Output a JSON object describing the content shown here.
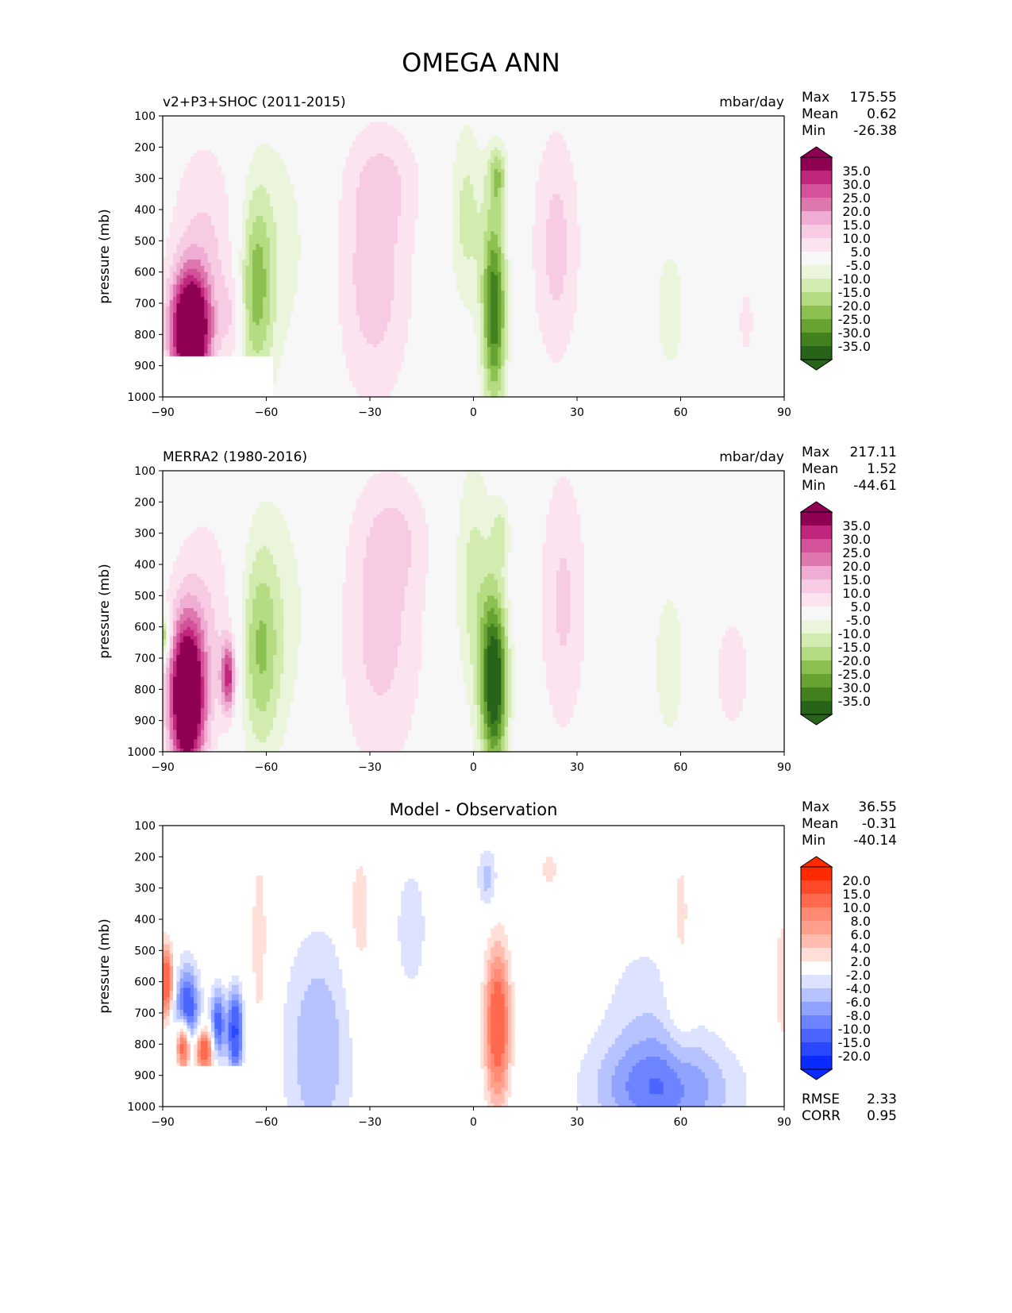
{
  "figure_title": "OMEGA ANN",
  "chart_data": [
    {
      "type": "heatmap",
      "subtype": "filled-contour",
      "title_left": "v2+P3+SHOC (2011-2015)",
      "title_right": "mbar/day",
      "title_center": "",
      "xlabel": "",
      "ylabel": "pressure (mb)",
      "xlim": [
        -90,
        90
      ],
      "ylim": [
        1000,
        100
      ],
      "xticks": [
        -90,
        -60,
        -30,
        0,
        30,
        60,
        90
      ],
      "xtick_labels": [
        "−90",
        "−60",
        "−30",
        "0",
        "30",
        "60",
        "90"
      ],
      "yticks": [
        100,
        200,
        300,
        400,
        500,
        600,
        700,
        800,
        900,
        1000
      ],
      "ytick_labels": [
        "100",
        "200",
        "300",
        "400",
        "500",
        "600",
        "700",
        "800",
        "900",
        "1000"
      ],
      "stats": [
        {
          "label": "Max",
          "value": "175.55"
        },
        {
          "label": "Mean",
          "value": "0.62"
        },
        {
          "label": "Min",
          "value": "-26.38"
        }
      ],
      "colorbar": {
        "levels": [
          35,
          30,
          25,
          20,
          15,
          10,
          5,
          -5,
          -10,
          -15,
          -20,
          -25,
          -30,
          -35
        ],
        "labels": [
          "35.0",
          "30.0",
          "25.0",
          "20.0",
          "15.0",
          "10.0",
          "5.0",
          "-5.0",
          "-10.0",
          "-15.0",
          "-20.0",
          "-25.0",
          "-30.0",
          "-35.0"
        ],
        "colors": [
          "#8e0152",
          "#c0267e",
          "#d3529a",
          "#de77ae",
          "#efadd3",
          "#f7cbe4",
          "#fbe3f0",
          "#f7f7f7",
          "#eaf5dc",
          "#d2ecb0",
          "#b5dc82",
          "#8cc051",
          "#68a232",
          "#43811f",
          "#276419"
        ]
      },
      "missing_region": {
        "lat_max": -58,
        "p_min": 870
      },
      "features": [
        {
          "lat": -82,
          "p": 790,
          "dlat": 4,
          "dp": 130,
          "amp": 55
        },
        {
          "lat": -77,
          "p": 520,
          "dlat": 8,
          "dp": 260,
          "amp": 11
        },
        {
          "lat": -70,
          "p": 750,
          "dlat": 2,
          "dp": 120,
          "amp": 8
        },
        {
          "lat": -63,
          "p": 650,
          "dlat": 3.5,
          "dp": 220,
          "amp": -20
        },
        {
          "lat": -57,
          "p": 520,
          "dlat": 9,
          "dp": 330,
          "amp": -7
        },
        {
          "lat": -29,
          "p": 620,
          "dlat": 8,
          "dp": 300,
          "amp": 13
        },
        {
          "lat": -25,
          "p": 300,
          "dlat": 8,
          "dp": 120,
          "amp": 6
        },
        {
          "lat": 6,
          "p": 720,
          "dlat": 2.5,
          "dp": 230,
          "amp": -34
        },
        {
          "lat": -2,
          "p": 420,
          "dlat": 3.5,
          "dp": 220,
          "amp": -12
        },
        {
          "lat": 7,
          "p": 290,
          "dlat": 2,
          "dp": 70,
          "amp": -16
        },
        {
          "lat": 24,
          "p": 520,
          "dlat": 5,
          "dp": 280,
          "amp": 12
        },
        {
          "lat": 57,
          "p": 720,
          "dlat": 4,
          "dp": 200,
          "amp": -7
        },
        {
          "lat": 79,
          "p": 760,
          "dlat": 1.5,
          "dp": 80,
          "amp": 9
        }
      ]
    },
    {
      "type": "heatmap",
      "subtype": "filled-contour",
      "title_left": "MERRA2 (1980-2016)",
      "title_right": "mbar/day",
      "title_center": "",
      "xlabel": "",
      "ylabel": "pressure (mb)",
      "xlim": [
        -90,
        90
      ],
      "ylim": [
        1000,
        100
      ],
      "xticks": [
        -90,
        -60,
        -30,
        0,
        30,
        60,
        90
      ],
      "xtick_labels": [
        "−90",
        "−60",
        "−30",
        "0",
        "30",
        "60",
        "90"
      ],
      "yticks": [
        100,
        200,
        300,
        400,
        500,
        600,
        700,
        800,
        900,
        1000
      ],
      "ytick_labels": [
        "100",
        "200",
        "300",
        "400",
        "500",
        "600",
        "700",
        "800",
        "900",
        "1000"
      ],
      "stats": [
        {
          "label": "Max",
          "value": "217.11"
        },
        {
          "label": "Mean",
          "value": "1.52"
        },
        {
          "label": "Min",
          "value": "-44.61"
        }
      ],
      "colorbar": {
        "levels": [
          35,
          30,
          25,
          20,
          15,
          10,
          5,
          -5,
          -10,
          -15,
          -20,
          -25,
          -30,
          -35
        ],
        "labels": [
          "35.0",
          "30.0",
          "25.0",
          "20.0",
          "15.0",
          "10.0",
          "5.0",
          "-5.0",
          "-10.0",
          "-15.0",
          "-20.0",
          "-25.0",
          "-30.0",
          "-35.0"
        ],
        "colors": [
          "#8e0152",
          "#c0267e",
          "#d3529a",
          "#de77ae",
          "#efadd3",
          "#f7cbe4",
          "#fbe3f0",
          "#f7f7f7",
          "#eaf5dc",
          "#d2ecb0",
          "#b5dc82",
          "#8cc051",
          "#68a232",
          "#43811f",
          "#276419"
        ]
      },
      "missing_region": null,
      "features": [
        {
          "lat": -83,
          "p": 830,
          "dlat": 3.5,
          "dp": 170,
          "amp": 55
        },
        {
          "lat": -77,
          "p": 600,
          "dlat": 8,
          "dp": 280,
          "amp": 10
        },
        {
          "lat": -71,
          "p": 760,
          "dlat": 1.5,
          "dp": 80,
          "amp": 30
        },
        {
          "lat": -90,
          "p": 630,
          "dlat": 1.5,
          "dp": 50,
          "amp": -25
        },
        {
          "lat": -62,
          "p": 680,
          "dlat": 4,
          "dp": 230,
          "amp": -17
        },
        {
          "lat": -57,
          "p": 560,
          "dlat": 9,
          "dp": 340,
          "amp": -7
        },
        {
          "lat": -27,
          "p": 620,
          "dlat": 9,
          "dp": 330,
          "amp": 12
        },
        {
          "lat": -22,
          "p": 300,
          "dlat": 7,
          "dp": 130,
          "amp": 6
        },
        {
          "lat": 6,
          "p": 780,
          "dlat": 2.8,
          "dp": 200,
          "amp": -42
        },
        {
          "lat": 0,
          "p": 450,
          "dlat": 4,
          "dp": 280,
          "amp": -12
        },
        {
          "lat": 8,
          "p": 300,
          "dlat": 2,
          "dp": 80,
          "amp": -10
        },
        {
          "lat": 26,
          "p": 520,
          "dlat": 5,
          "dp": 320,
          "amp": 11
        },
        {
          "lat": 57,
          "p": 720,
          "dlat": 4,
          "dp": 220,
          "amp": -8
        },
        {
          "lat": 75,
          "p": 750,
          "dlat": 7,
          "dp": 250,
          "amp": 6
        }
      ]
    },
    {
      "type": "heatmap",
      "subtype": "filled-contour",
      "title_left": "",
      "title_right": "",
      "title_center": "Model - Observation",
      "xlabel": "",
      "ylabel": "pressure (mb)",
      "xlim": [
        -90,
        90
      ],
      "ylim": [
        1000,
        100
      ],
      "xticks": [
        -90,
        -60,
        -30,
        0,
        30,
        60,
        90
      ],
      "xtick_labels": [
        "−90",
        "−60",
        "−30",
        "0",
        "30",
        "60",
        "90"
      ],
      "yticks": [
        100,
        200,
        300,
        400,
        500,
        600,
        700,
        800,
        900,
        1000
      ],
      "ytick_labels": [
        "100",
        "200",
        "300",
        "400",
        "500",
        "600",
        "700",
        "800",
        "900",
        "1000"
      ],
      "stats": [
        {
          "label": "Max",
          "value": "36.55"
        },
        {
          "label": "Mean",
          "value": "-0.31"
        },
        {
          "label": "Min",
          "value": "-40.14"
        }
      ],
      "extra_stats": [
        {
          "label": "RMSE",
          "value": "2.33"
        },
        {
          "label": "CORR",
          "value": "0.95"
        }
      ],
      "colorbar": {
        "levels": [
          20,
          15,
          10,
          8,
          6,
          4,
          2,
          -2,
          -4,
          -6,
          -8,
          -10,
          -15,
          -20
        ],
        "labels": [
          "20.0",
          "15.0",
          "10.0",
          "8.0",
          "6.0",
          "4.0",
          "2.0",
          "-2.0",
          "-4.0",
          "-6.0",
          "-8.0",
          "-10.0",
          "-15.0",
          "-20.0"
        ],
        "colors": [
          "#ff2a00",
          "#ff4a2a",
          "#ff6a4f",
          "#ff8a74",
          "#ff9e8a",
          "#ffbcaf",
          "#ffdfd8",
          "#ffffff",
          "#dce2ff",
          "#b6c3ff",
          "#8fa3ff",
          "#6c84ff",
          "#4b66ff",
          "#2a48ff",
          "#0a2aff"
        ]
      },
      "missing_region": {
        "lat_max": -58,
        "p_min": 870
      },
      "features": [
        {
          "lat": 7,
          "p": 740,
          "dlat": 2.5,
          "dp": 170,
          "amp": 14
        },
        {
          "lat": -89,
          "p": 600,
          "dlat": 1.5,
          "dp": 80,
          "amp": 14
        },
        {
          "lat": -84,
          "p": 800,
          "dlat": 1.5,
          "dp": 60,
          "amp": 18
        },
        {
          "lat": -78,
          "p": 820,
          "dlat": 2,
          "dp": 50,
          "amp": 14
        },
        {
          "lat": -83,
          "p": 700,
          "dlat": 2.5,
          "dp": 100,
          "amp": -14
        },
        {
          "lat": -74,
          "p": 740,
          "dlat": 1.5,
          "dp": 80,
          "amp": -12
        },
        {
          "lat": -69,
          "p": 760,
          "dlat": 1.5,
          "dp": 90,
          "amp": -16
        },
        {
          "lat": -62,
          "p": 480,
          "dlat": 2,
          "dp": 260,
          "amp": 3
        },
        {
          "lat": -45,
          "p": 820,
          "dlat": 7,
          "dp": 260,
          "amp": -6
        },
        {
          "lat": -33,
          "p": 400,
          "dlat": 3,
          "dp": 200,
          "amp": 3
        },
        {
          "lat": -18,
          "p": 430,
          "dlat": 4,
          "dp": 180,
          "amp": -3
        },
        {
          "lat": 4,
          "p": 270,
          "dlat": 2,
          "dp": 70,
          "amp": -5
        },
        {
          "lat": 22,
          "p": 240,
          "dlat": 2,
          "dp": 50,
          "amp": 3
        },
        {
          "lat": 55,
          "p": 950,
          "dlat": 14,
          "dp": 120,
          "amp": -9
        },
        {
          "lat": 50,
          "p": 700,
          "dlat": 10,
          "dp": 200,
          "amp": -3
        },
        {
          "lat": 60,
          "p": 500,
          "dlat": 3,
          "dp": 300,
          "amp": 3
        },
        {
          "lat": 90,
          "p": 600,
          "dlat": 2,
          "dp": 150,
          "amp": 4
        }
      ]
    }
  ]
}
